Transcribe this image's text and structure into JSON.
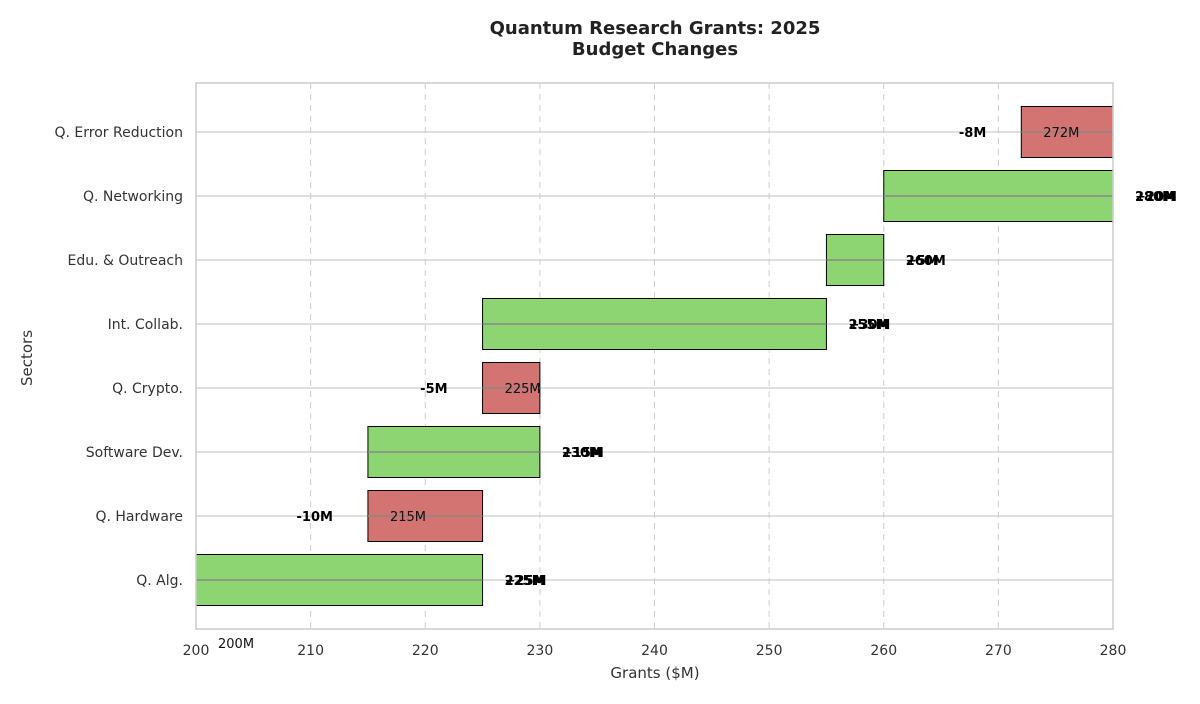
{
  "chart_data": {
    "type": "bar",
    "orientation": "horizontal-waterfall",
    "title": [
      "Quantum Research Grants: 2025",
      "Budget Changes"
    ],
    "xlabel": "Grants ($M)",
    "ylabel": "Sectors",
    "xlim": [
      200,
      280
    ],
    "xticks": [
      200,
      210,
      220,
      230,
      240,
      250,
      260,
      270,
      280
    ],
    "grid": true,
    "colors": {
      "increase": "#8dd473",
      "decrease": "#d47472",
      "edge": "#000000",
      "connector": "#888888",
      "grid": "#cccccc"
    },
    "start_label": "200M",
    "categories": [
      "Q. Alg.",
      "Q. Hardware",
      "Software Dev.",
      "Q. Crypto.",
      "Int. Collab.",
      "Edu. & Outreach",
      "Q. Networking",
      "Q. Error Reduction"
    ],
    "bars": [
      {
        "start": 200,
        "end": 225,
        "change": 25,
        "delta_label": "+25M",
        "total_label": "225M"
      },
      {
        "start": 225,
        "end": 215,
        "change": -10,
        "delta_label": "-10M",
        "total_label": "215M"
      },
      {
        "start": 215,
        "end": 230,
        "change": 15,
        "delta_label": "+15M",
        "total_label": "230M"
      },
      {
        "start": 230,
        "end": 225,
        "change": -5,
        "delta_label": "-5M",
        "total_label": "225M"
      },
      {
        "start": 225,
        "end": 255,
        "change": 30,
        "delta_label": "+30M",
        "total_label": "255M"
      },
      {
        "start": 255,
        "end": 260,
        "change": 5,
        "delta_label": "+5M",
        "total_label": "260M"
      },
      {
        "start": 260,
        "end": 280,
        "change": 20,
        "delta_label": "+20M",
        "total_label": "280M"
      },
      {
        "start": 280,
        "end": 272,
        "change": -8,
        "delta_label": "-8M",
        "total_label": "272M"
      }
    ]
  }
}
